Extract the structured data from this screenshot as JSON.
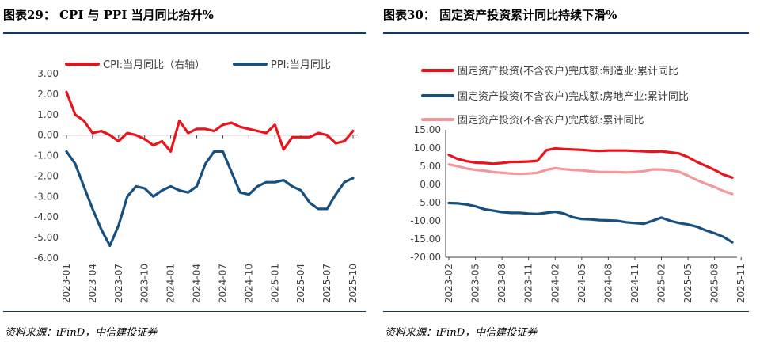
{
  "chart_data": [
    {
      "type": "line",
      "title": "图表29：  CPI 与 PPI 当月同比抬升%",
      "source": "资料来源：iFinD，中信建投证券",
      "x_tick_labels": [
        "2023-01",
        "2023-04",
        "2023-07",
        "2023-10",
        "2024-01",
        "2024-04",
        "2024-07",
        "2024-10",
        "2025-01",
        "2025-04",
        "2025-07",
        "2025-10"
      ],
      "y_tick_labels": [
        "3.00",
        "2.00",
        "1.00",
        "0.00",
        "-1.00",
        "-2.00",
        "-3.00",
        "-4.00",
        "-5.00",
        "-6.00"
      ],
      "ylim": [
        -6,
        3
      ],
      "series": [
        {
          "name": "CPI:当月同比（右轴）",
          "color": "#e8141b",
          "values": [
            2.1,
            1.0,
            0.7,
            0.1,
            0.2,
            0.0,
            -0.3,
            0.1,
            0.0,
            -0.2,
            -0.5,
            -0.3,
            -0.8,
            0.7,
            0.1,
            0.3,
            0.3,
            0.2,
            0.5,
            0.6,
            0.4,
            0.3,
            0.2,
            0.1,
            0.5,
            -0.7,
            -0.1,
            -0.1,
            -0.1,
            0.1,
            0.0,
            -0.4,
            -0.3,
            0.2
          ]
        },
        {
          "name": "PPI:当月同比",
          "color": "#17507e",
          "values": [
            -0.8,
            -1.4,
            -2.5,
            -3.6,
            -4.6,
            -5.4,
            -4.4,
            -3.0,
            -2.5,
            -2.6,
            -3.0,
            -2.7,
            -2.5,
            -2.7,
            -2.8,
            -2.5,
            -1.4,
            -0.8,
            -0.8,
            -1.8,
            -2.8,
            -2.9,
            -2.5,
            -2.3,
            -2.3,
            -2.2,
            -2.5,
            -2.7,
            -3.3,
            -3.6,
            -3.6,
            -2.9,
            -2.3,
            -2.1
          ]
        }
      ]
    },
    {
      "type": "line",
      "title": "图表30：  固定资产投资累计同比持续下滑%",
      "source": "资料来源：iFinD，中信建投证券",
      "x_tick_labels": [
        "2023-02",
        "2023-05",
        "2023-08",
        "2023-11",
        "2024-02",
        "2024-05",
        "2024-08",
        "2024-11",
        "2025-02",
        "2025-05",
        "2025-08",
        "2025-11"
      ],
      "y_tick_labels": [
        "15.00",
        "10.00",
        "5.00",
        "0.00",
        "-5.00",
        "-10.00",
        "-15.00",
        "-20.00"
      ],
      "ylim": [
        -20,
        15
      ],
      "series": [
        {
          "name": "固定资产投资(不含农户)完成额:制造业:累计同比",
          "color": "#e8141b",
          "values": [
            8.1,
            7.0,
            6.4,
            6.0,
            5.9,
            5.7,
            5.9,
            6.2,
            6.2,
            6.3,
            6.5,
            9.4,
            9.9,
            9.7,
            9.6,
            9.5,
            9.3,
            9.2,
            9.3,
            9.3,
            9.3,
            9.2,
            9.1,
            9.0,
            9.1,
            8.8,
            8.5,
            7.5,
            6.2,
            5.1,
            4.0,
            2.7,
            1.9
          ]
        },
        {
          "name": "固定资产投资(不含农户)完成额:房地产业:累计同比",
          "color": "#17507e",
          "values": [
            -5.1,
            -5.2,
            -5.5,
            -6.0,
            -6.8,
            -7.2,
            -7.6,
            -7.8,
            -7.8,
            -8.0,
            -8.1,
            -7.8,
            -7.5,
            -8.0,
            -9.0,
            -9.5,
            -9.6,
            -9.8,
            -9.9,
            -10.0,
            -10.4,
            -10.6,
            -10.8,
            -10.0,
            -9.1,
            -10.0,
            -10.6,
            -11.0,
            -11.6,
            -12.6,
            -13.4,
            -14.4,
            -15.9
          ]
        },
        {
          "name": "固定资产投资(不含农户)完成额:累计同比",
          "color": "#f4969a",
          "values": [
            5.5,
            5.0,
            4.4,
            4.0,
            3.8,
            3.4,
            3.2,
            3.0,
            2.9,
            3.0,
            3.2,
            4.0,
            4.5,
            4.2,
            4.0,
            3.9,
            3.6,
            3.4,
            3.4,
            3.4,
            3.3,
            3.4,
            3.6,
            4.1,
            4.1,
            3.9,
            3.5,
            2.4,
            1.2,
            0.2,
            -0.7,
            -1.8,
            -2.6
          ]
        }
      ]
    }
  ]
}
